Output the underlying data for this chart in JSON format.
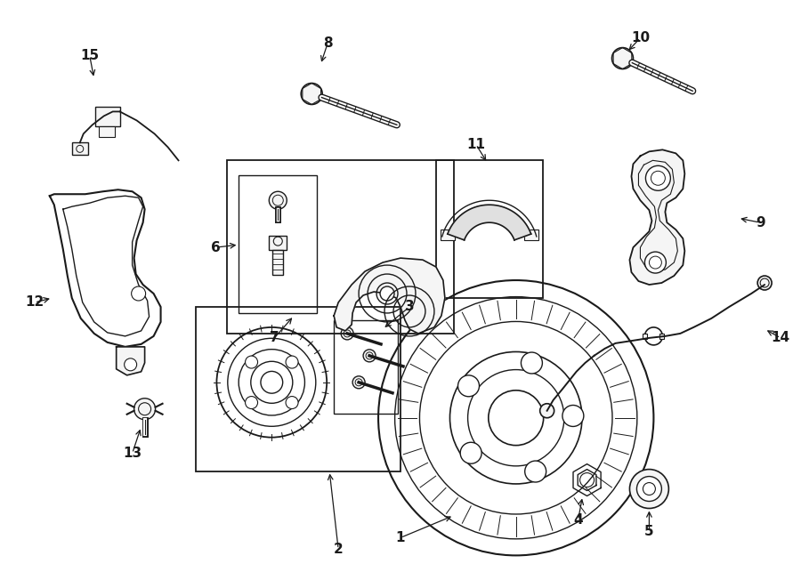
{
  "background_color": "#ffffff",
  "figsize": [
    9.0,
    6.61
  ],
  "dpi": 100,
  "line_color": "#1a1a1a",
  "fill_light": "#f5f5f5",
  "fill_mid": "#e0e0e0"
}
